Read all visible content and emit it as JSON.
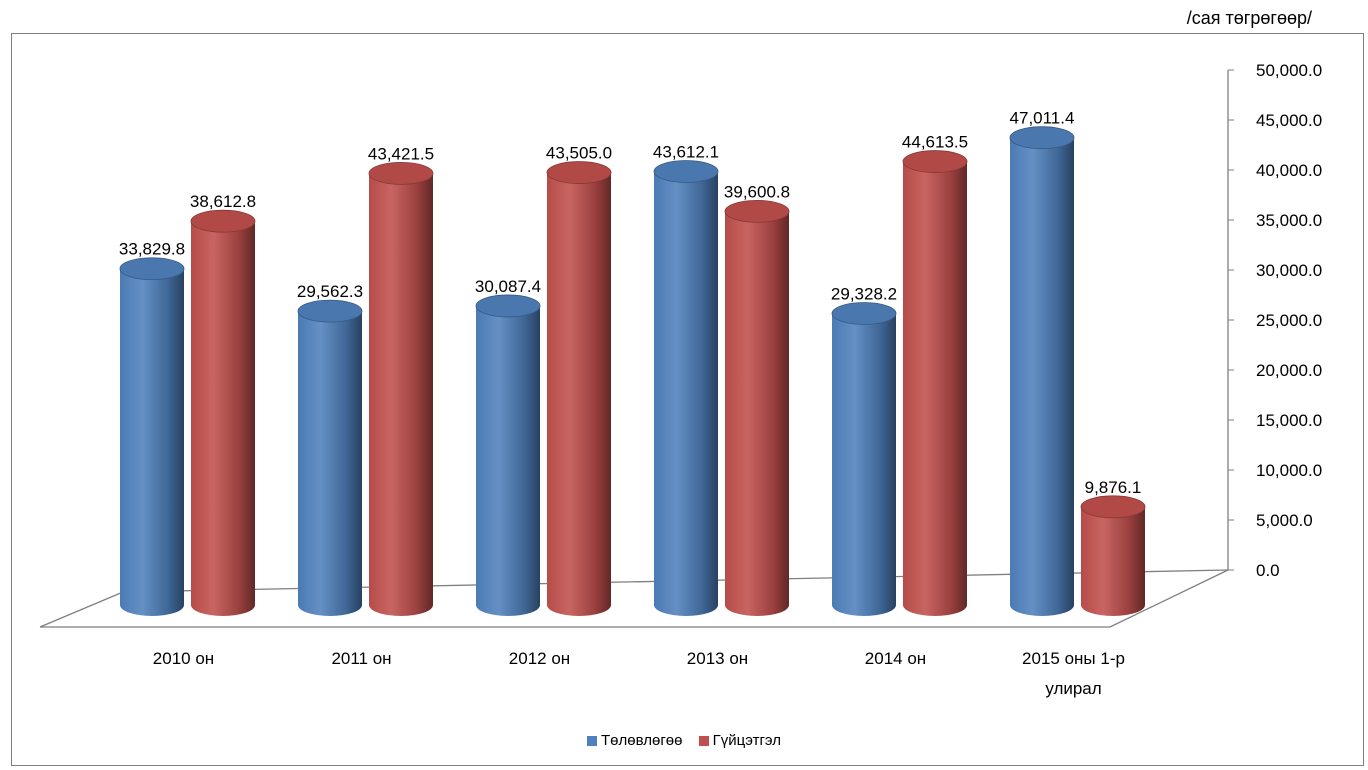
{
  "unit_label": "/сая төгрөгөөр/",
  "chart_data": {
    "type": "bar",
    "categories": [
      "2010 он",
      "2011 он",
      "2012 он",
      "2013 он",
      "2014 он",
      "2015 оны 1-р улирал"
    ],
    "category_lines": [
      [
        "2010 он"
      ],
      [
        "2011 он"
      ],
      [
        "2012 он"
      ],
      [
        "2013 он"
      ],
      [
        "2014 он"
      ],
      [
        "2015 оны 1-р",
        "улирал"
      ]
    ],
    "series": [
      {
        "name": "Төлөвлөгөө",
        "color": "#4f81bd",
        "values": [
          33829.8,
          29562.3,
          30087.4,
          43612.1,
          29328.2,
          47011.4
        ],
        "labels": [
          "33,829.8",
          "29,562.3",
          "30,087.4",
          "43,612.1",
          "29,328.2",
          "47,011.4"
        ]
      },
      {
        "name": "Гүйцэтгэл",
        "color": "#c0504d",
        "values": [
          38612.8,
          43421.5,
          43505.0,
          39600.8,
          44613.5,
          9876.1
        ],
        "labels": [
          "38,612.8",
          "43,421.5",
          "43,505.0",
          "39,600.8",
          "44,613.5",
          "9,876.1"
        ]
      }
    ],
    "y_ticks": [
      "0.0",
      "5,000.0",
      "10,000.0",
      "15,000.0",
      "20,000.0",
      "25,000.0",
      "30,000.0",
      "35,000.0",
      "40,000.0",
      "45,000.0",
      "50,000.0"
    ],
    "ylim": [
      0,
      50000
    ],
    "y_axis_side": "right",
    "legend_position": "bottom",
    "style": "3d-cylinder",
    "grid": false
  }
}
